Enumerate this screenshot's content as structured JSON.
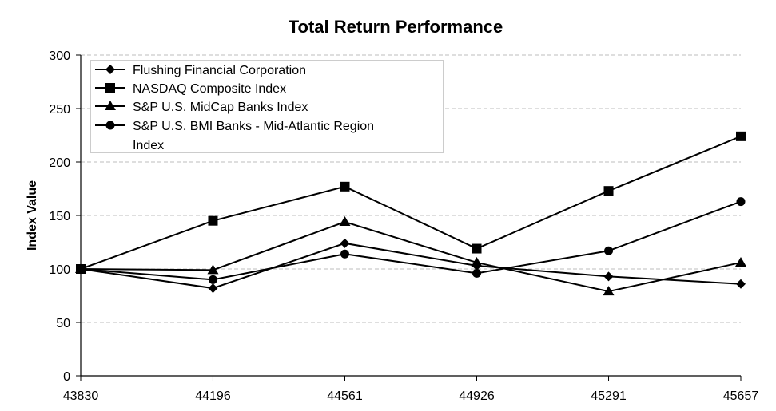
{
  "chart_data": {
    "type": "line",
    "title": "Total Return Performance",
    "xlabel": "",
    "ylabel": "Index Value",
    "x": [
      43830,
      44196,
      44561,
      44926,
      45291,
      45657
    ],
    "ylim": [
      0,
      300
    ],
    "yticks": [
      0,
      50,
      100,
      150,
      200,
      250,
      300
    ],
    "grid": true,
    "legend_position": "top-left",
    "series": [
      {
        "name": "Flushing Financial Corporation",
        "marker": "diamond",
        "values": [
          100,
          82,
          124,
          103,
          93,
          86
        ]
      },
      {
        "name": "NASDAQ Composite Index",
        "marker": "square",
        "values": [
          100,
          145,
          177,
          119,
          173,
          224
        ]
      },
      {
        "name": "S&P U.S. MidCap Banks Index",
        "marker": "triangle",
        "values": [
          100,
          99,
          144,
          106,
          79,
          106
        ]
      },
      {
        "name": "S&P U.S. BMI Banks - Mid-Atlantic Region Index",
        "marker": "circle",
        "legend_lines": [
          "S&P U.S. BMI Banks - Mid-Atlantic Region",
          "Index"
        ],
        "values": [
          100,
          90,
          114,
          96,
          117,
          163
        ]
      }
    ]
  }
}
